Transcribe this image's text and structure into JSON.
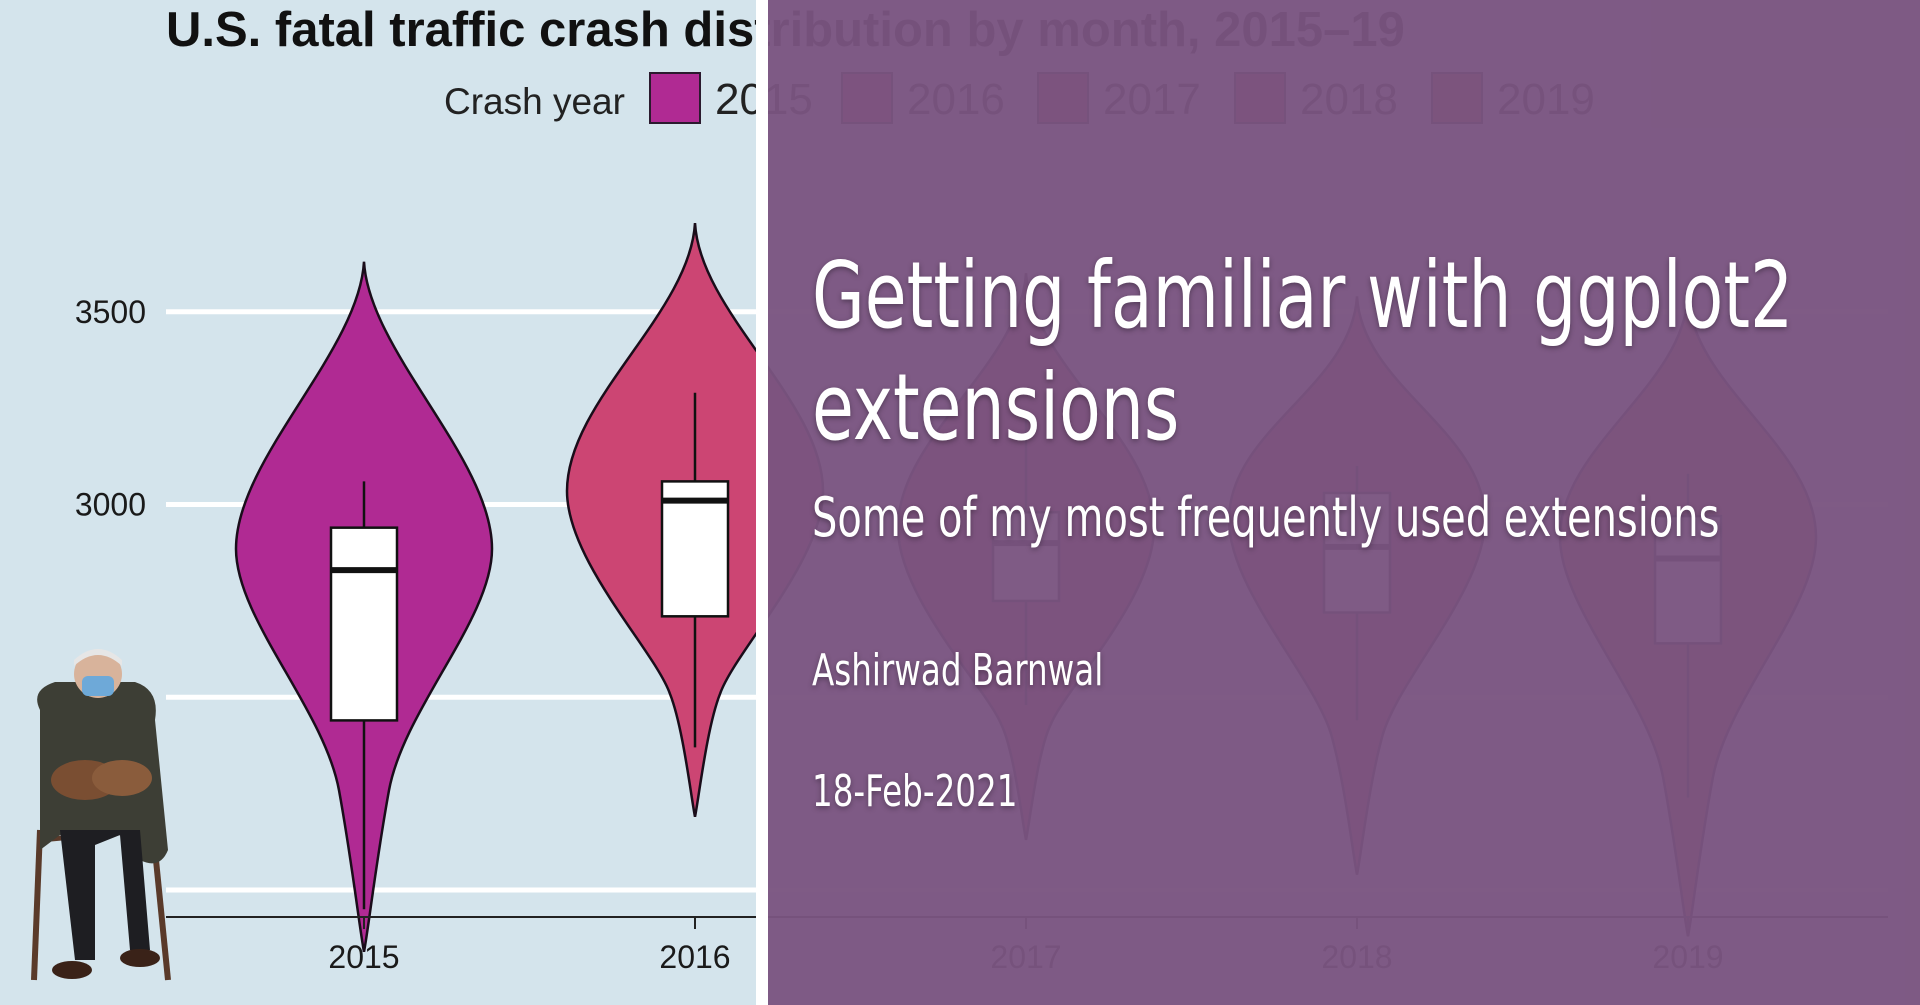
{
  "chart_data": {
    "type": "violin",
    "title": "U.S. fatal traffic crash distribution by month, 2015–19",
    "legend_title": "Crash year",
    "legend_position": "top",
    "categories": [
      "2015",
      "2016",
      "2017",
      "2018",
      "2019"
    ],
    "y_ticks": [
      3500,
      3000,
      2500
    ],
    "ylim": [
      1930,
      3790
    ],
    "grid": true,
    "series": [
      {
        "name": "2015",
        "color": "#b02a93",
        "min": 1950,
        "q1": 2440,
        "median": 2830,
        "q3": 2940,
        "max": 3060,
        "violin_low": 1840,
        "violin_high": 3630
      },
      {
        "name": "2016",
        "color": "#cc4573",
        "min": 2370,
        "q1": 2710,
        "median": 3010,
        "q3": 3060,
        "max": 3290,
        "violin_low": 2190,
        "violin_high": 3730
      },
      {
        "name": "2017",
        "color": "#b92f5d",
        "min": 2480,
        "q1": 2750,
        "median": 2900,
        "q3": 2980,
        "max": 3230,
        "violin_low": 2130,
        "violin_high": 3600
      },
      {
        "name": "2018",
        "color": "#b54559",
        "min": 2440,
        "q1": 2720,
        "median": 2890,
        "q3": 3030,
        "max": 3100,
        "violin_low": 2040,
        "violin_high": 3540
      },
      {
        "name": "2019",
        "color": "#b85b42",
        "min": 2240,
        "q1": 2640,
        "median": 2860,
        "q3": 2970,
        "max": 3080,
        "violin_low": 1880,
        "violin_high": 3540
      }
    ]
  },
  "blog": {
    "title": "Getting familiar with ggplot2 extensions",
    "subtitle": "Some of my most frequently used extensions",
    "author": "Ashirwad Barnwal",
    "date": "18-Feb-2021"
  }
}
